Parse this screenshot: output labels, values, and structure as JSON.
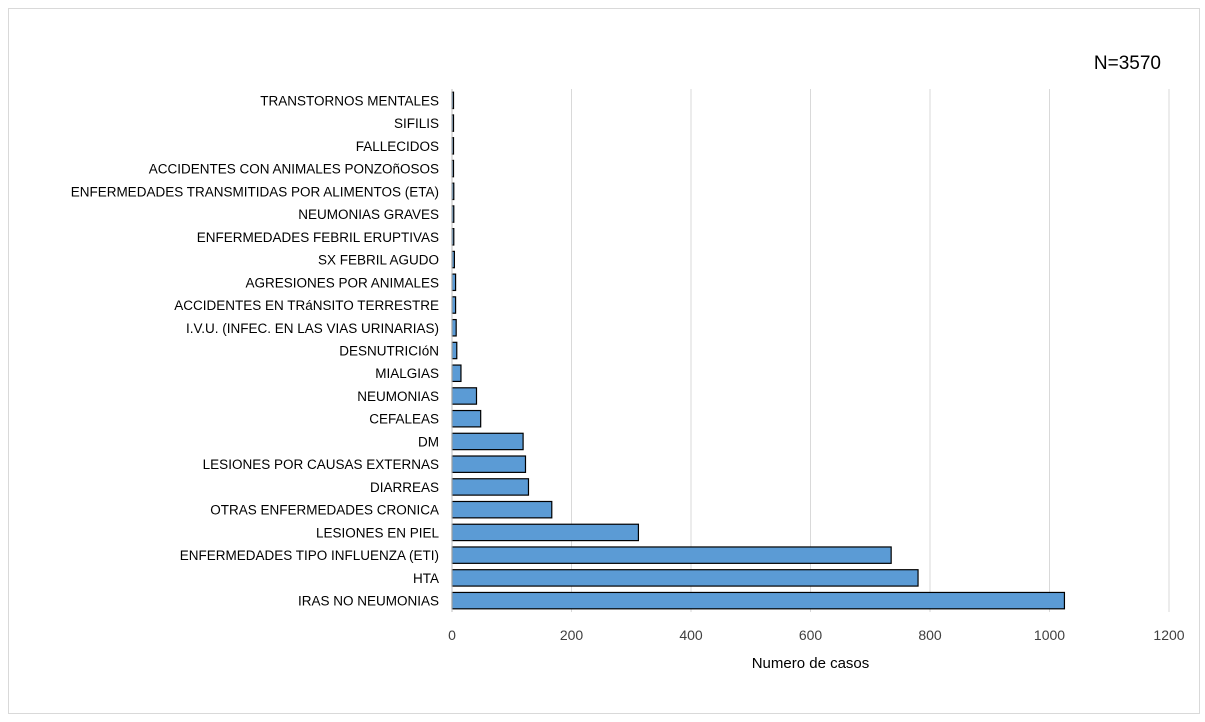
{
  "chart_data": {
    "type": "bar",
    "orientation": "horizontal",
    "annotation": "N=3570",
    "xlabel": "Numero de casos",
    "ylabel": "",
    "xlim": [
      0,
      1200
    ],
    "x_ticks": [
      "0",
      "200",
      "400",
      "600",
      "800",
      "1000",
      "1200"
    ],
    "grid": "vertical",
    "bar_color": "#5b9bd5",
    "categories": [
      "IRAS NO NEUMONIAS",
      "HTA",
      "ENFERMEDADES TIPO INFLUENZA (ETI)",
      "LESIONES EN PIEL",
      "OTRAS ENFERMEDADES CRONICA",
      "DIARREAS",
      "LESIONES POR CAUSAS EXTERNAS",
      "DM",
      "CEFALEAS",
      "NEUMONIAS",
      "MIALGIAS",
      "DESNUTRICIóN",
      "I.V.U. (INFEC. EN LAS VIAS URINARIAS)",
      "ACCIDENTES EN TRáNSITO TERRESTRE",
      "AGRESIONES POR ANIMALES",
      "SX FEBRIL AGUDO",
      "ENFERMEDADES FEBRIL ERUPTIVAS",
      "NEUMONIAS GRAVES",
      "ENFERMEDADES TRANSMITIDAS POR ALIMENTOS (ETA)",
      "ACCIDENTES CON ANIMALES PONZOñOSOS",
      "FALLECIDOS",
      "SIFILIS",
      "TRANSTORNOS MENTALES"
    ],
    "values": [
      1025,
      780,
      735,
      312,
      167,
      128,
      123,
      119,
      48,
      41,
      15,
      8,
      7,
      6,
      6,
      4,
      3,
      3,
      3,
      2,
      1,
      1,
      1
    ]
  }
}
